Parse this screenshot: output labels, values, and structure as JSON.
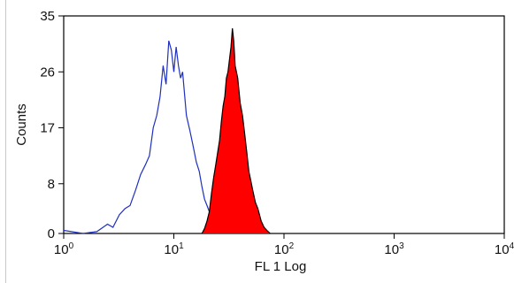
{
  "chart_data": {
    "type": "area",
    "x_scale": "log",
    "xlim": [
      1,
      10000
    ],
    "ylim": [
      0,
      35
    ],
    "xlabel": "FL 1 Log",
    "ylabel": "Counts",
    "x_ticks": [
      {
        "value": 1,
        "base": "10",
        "exp": "0"
      },
      {
        "value": 10,
        "base": "10",
        "exp": "1"
      },
      {
        "value": 100,
        "base": "10",
        "exp": "2"
      },
      {
        "value": 1000,
        "base": "10",
        "exp": "3"
      },
      {
        "value": 10000,
        "base": "10",
        "exp": "4"
      }
    ],
    "y_ticks": [
      {
        "value": 0,
        "label": "0"
      },
      {
        "value": 8,
        "label": "8"
      },
      {
        "value": 17,
        "label": "17"
      },
      {
        "value": 26,
        "label": "26"
      },
      {
        "value": 35,
        "label": "35"
      }
    ],
    "grid": false,
    "legend": "none",
    "series": [
      {
        "style": "outline",
        "color": "#1f2fbf",
        "x": [
          1.0,
          1.5,
          2.0,
          2.5,
          2.8,
          3.2,
          3.6,
          4.0,
          4.5,
          5.0,
          5.5,
          6.0,
          6.5,
          7.0,
          7.5,
          8.0,
          8.5,
          9.0,
          9.5,
          10.0,
          10.5,
          11.0,
          11.5,
          12.0,
          13.0,
          14.0,
          15.0,
          16.0,
          17.0,
          18.0,
          19.0,
          20.0,
          21.0,
          22.0,
          23.0,
          24.0,
          25.0
        ],
        "y": [
          0.5,
          0,
          0.3,
          1.5,
          1.0,
          3.0,
          4.0,
          4.5,
          7.0,
          9.5,
          11.0,
          12.5,
          17.0,
          19.0,
          22.0,
          27.0,
          24.0,
          31.0,
          29.5,
          26.0,
          30.0,
          27.0,
          25.0,
          26.0,
          19.0,
          16.5,
          14.0,
          11.5,
          10.0,
          7.5,
          5.5,
          4.5,
          3.5,
          2.5,
          1.0,
          0.5,
          0
        ]
      },
      {
        "style": "filled",
        "color": "#ff0000",
        "edge_color": "#000000",
        "x": [
          18.0,
          19.0,
          20.0,
          21.0,
          22.0,
          23.0,
          24.0,
          25.0,
          26.0,
          27.0,
          28.0,
          29.0,
          30.0,
          31.0,
          32.0,
          33.0,
          34.0,
          35.0,
          36.0,
          38.0,
          40.0,
          42.0,
          44.0,
          46.0,
          48.0,
          50.0,
          52.0,
          55.0,
          58.0,
          62.0,
          66.0,
          70.0,
          75.0
        ],
        "y": [
          0,
          0.8,
          2.0,
          3.5,
          6.5,
          9.0,
          11.0,
          13.0,
          15.0,
          18.0,
          20.5,
          22.0,
          25.0,
          26.0,
          28.0,
          30.0,
          33.0,
          31.0,
          27.0,
          25.0,
          21.0,
          19.0,
          16.0,
          13.0,
          10.0,
          8.5,
          7.0,
          5.0,
          4.0,
          2.0,
          1.0,
          0.5,
          0
        ]
      }
    ]
  }
}
